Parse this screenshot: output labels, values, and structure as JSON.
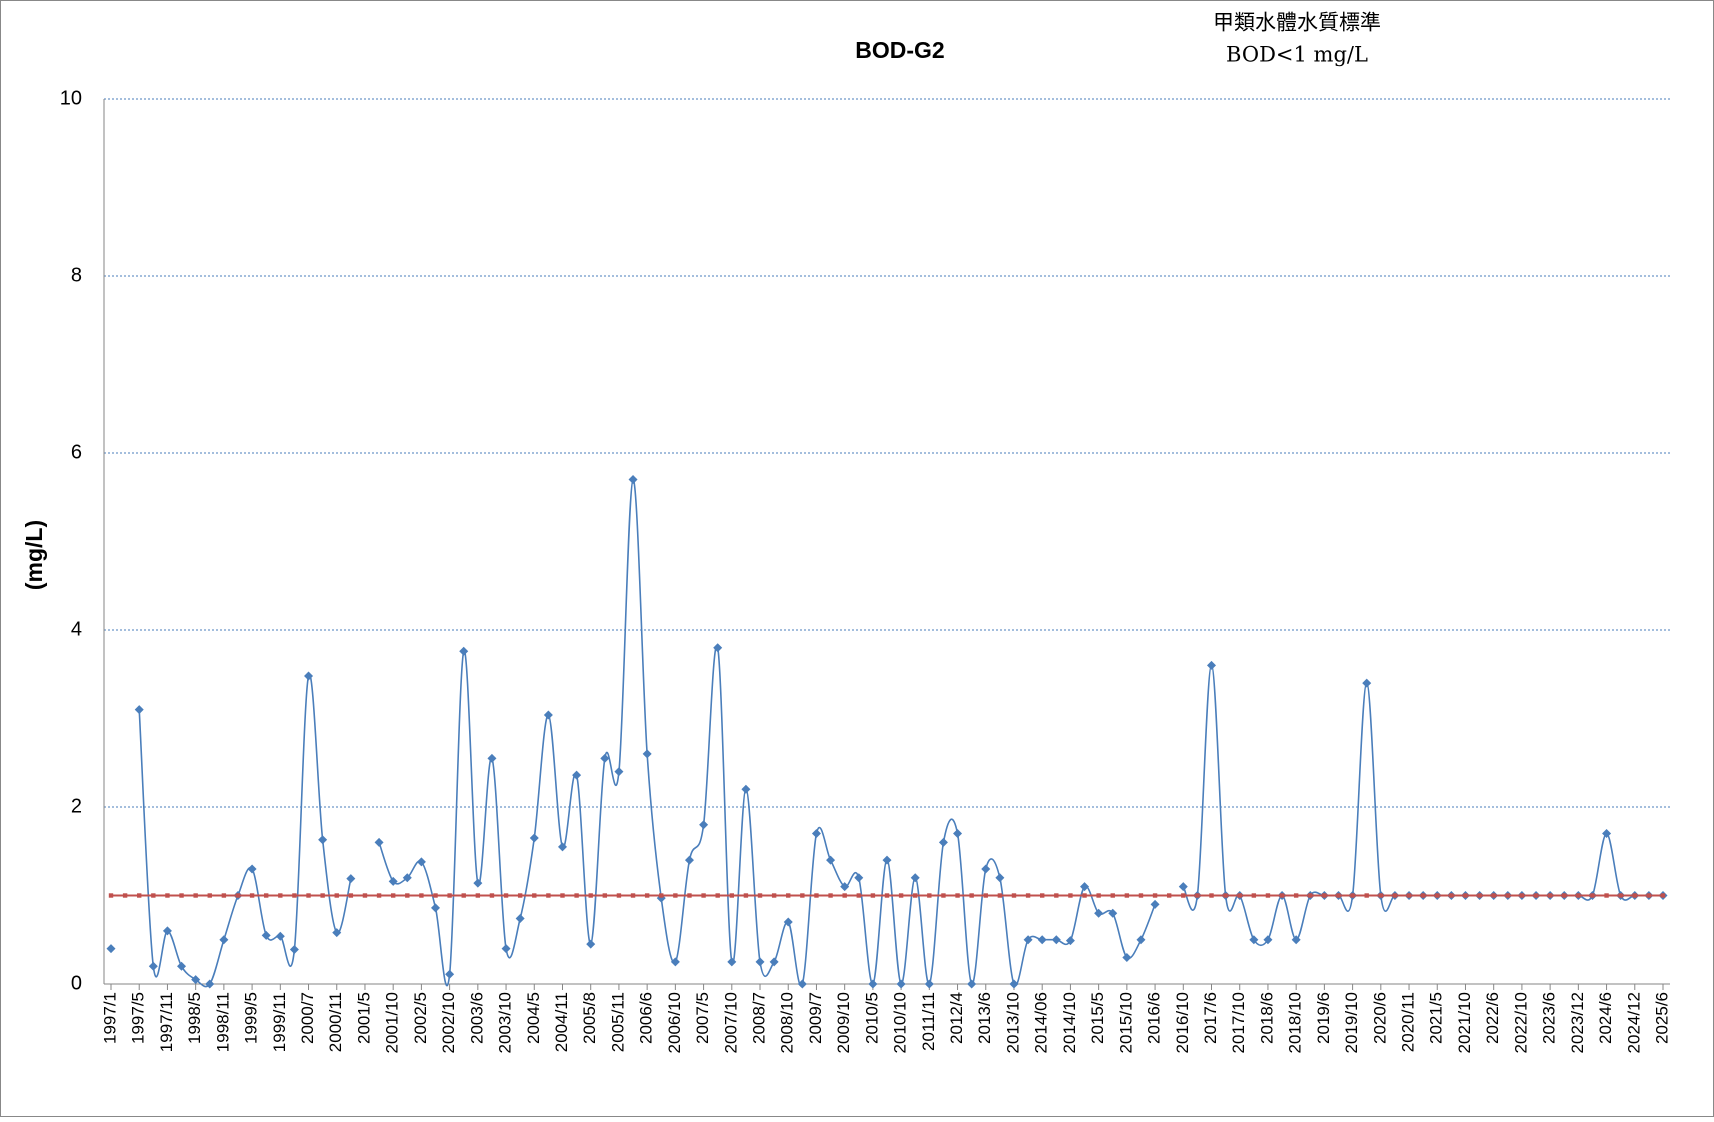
{
  "chart_data": {
    "type": "line",
    "title": "BOD-G2",
    "annotation": [
      "甲類水體水質標準",
      "BOD<1 mg/L"
    ],
    "y_label": "(mg/L)",
    "categories": [
      "1997/1",
      null,
      "1997/5",
      null,
      "1997/11",
      null,
      "1998/5",
      null,
      "1998/11",
      null,
      "1999/5",
      null,
      "1999/11",
      null,
      "2000/7",
      null,
      "2000/11",
      null,
      "2001/5",
      null,
      "2001/10",
      null,
      "2002/5",
      null,
      "2002/10",
      null,
      "2003/6",
      null,
      "2003/10",
      null,
      "2004/5",
      null,
      "2004/11",
      null,
      "2005/8",
      null,
      "2005/11",
      null,
      "2006/6",
      null,
      "2006/10",
      null,
      "2007/5",
      null,
      "2007/10",
      null,
      "2008/7",
      null,
      "2008/10",
      null,
      "2009/7",
      null,
      "2009/10",
      null,
      "2010/5",
      null,
      "2010/10",
      null,
      "2011/11",
      null,
      "2012/4",
      null,
      "2013/6",
      null,
      "2013/10",
      null,
      "2014/06",
      null,
      "2014/10",
      null,
      "2015/5",
      null,
      "2015/10",
      null,
      "2016/6",
      null,
      "2016/10",
      null,
      "2017/6",
      null,
      "2017/10",
      null,
      "2018/6",
      null,
      "2018/10",
      null,
      "2019/6",
      null,
      "2019/10",
      null,
      "2020/6",
      null,
      "2020/11",
      null,
      "2021/5",
      null,
      "2021/10",
      null,
      "2022/6",
      null,
      "2022/10",
      null,
      "2023/6",
      null,
      "2023/12",
      null,
      "2024/6",
      null,
      "2024/12",
      null,
      "2025/6"
    ],
    "series": [
      {
        "color": "#4a7ebb",
        "marker": "diamond",
        "smooth": true,
        "values": [
          0.4,
          null,
          3.1,
          0.2,
          0.6,
          0.2,
          0.05,
          0,
          0.5,
          1.0,
          1.3,
          0.55,
          0.54,
          0.39,
          3.48,
          1.63,
          0.58,
          1.19,
          null,
          1.6,
          1.16,
          1.2,
          1.38,
          0.86,
          0.11,
          3.76,
          1.14,
          2.55,
          0.4,
          0.74,
          1.65,
          3.04,
          1.55,
          2.36,
          0.45,
          2.55,
          2.4,
          5.7,
          2.6,
          0.97,
          0.25,
          1.4,
          1.8,
          3.8,
          0.25,
          2.2,
          0.25,
          0.25,
          0.7,
          0,
          1.7,
          1.4,
          1.1,
          1.2,
          0,
          1.4,
          0,
          1.2,
          0,
          1.6,
          1.7,
          0,
          1.3,
          1.2,
          0,
          0.5,
          0.5,
          0.5,
          0.49,
          1.1,
          0.8,
          0.8,
          0.3,
          0.5,
          0.9,
          null,
          1.1,
          1.0,
          3.6,
          1.0,
          1.0,
          0.5,
          0.5,
          1.0,
          0.5,
          1.0,
          1.0,
          1.0,
          1.0,
          3.4,
          1.0,
          1.0,
          1.0,
          1.0,
          1.0,
          1.0,
          1.0,
          1.0,
          1.0,
          1.0,
          1.0,
          1.0,
          1.0,
          1.0,
          1.0,
          1.0,
          1.7,
          1.0,
          1.0,
          1.0,
          1.0
        ]
      },
      {
        "color": "#c0504d",
        "marker": "square",
        "smooth": false,
        "values": [
          1,
          1,
          1,
          1,
          1,
          1,
          1,
          1,
          1,
          1,
          1,
          1,
          1,
          1,
          1,
          1,
          1,
          1,
          1,
          1,
          1,
          1,
          1,
          1,
          1,
          1,
          1,
          1,
          1,
          1,
          1,
          1,
          1,
          1,
          1,
          1,
          1,
          1,
          1,
          1,
          1,
          1,
          1,
          1,
          1,
          1,
          1,
          1,
          1,
          1,
          1,
          1,
          1,
          1,
          1,
          1,
          1,
          1,
          1,
          1,
          1,
          1,
          1,
          1,
          1,
          1,
          1,
          1,
          1,
          1,
          1,
          1,
          1,
          1,
          1,
          1,
          1,
          1,
          1,
          1,
          1,
          1,
          1,
          1,
          1,
          1,
          1,
          1,
          1,
          1,
          1,
          1,
          1,
          1,
          1,
          1,
          1,
          1,
          1,
          1,
          1,
          1,
          1,
          1,
          1,
          1,
          1,
          1,
          1,
          1,
          1
        ]
      }
    ],
    "ylim": [
      0,
      10
    ],
    "yticks": [
      0,
      2,
      4,
      6,
      8,
      10
    ],
    "grid": true
  }
}
